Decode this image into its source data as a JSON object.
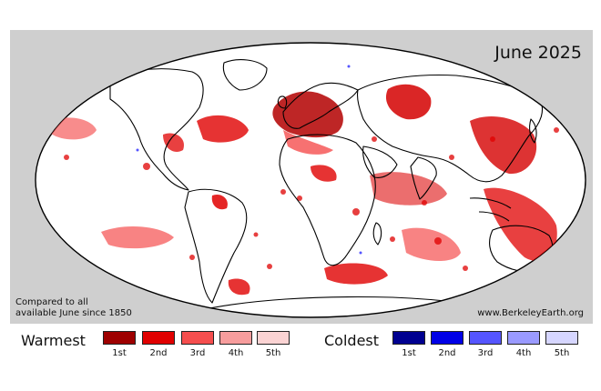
{
  "map": {
    "title": "June 2025",
    "note_line1": "Compared to all",
    "note_line2": "available June since 1850",
    "credit": "www.BerkeleyEarth.org",
    "colors": {
      "panel_bg": "#cfcfcf",
      "ocean_land": "#ffffff",
      "coast": "#000000"
    }
  },
  "legend": {
    "warm": {
      "label": "Warmest",
      "ranks": [
        {
          "label": "1st",
          "color": "#9e0000"
        },
        {
          "label": "2nd",
          "color": "#e00000"
        },
        {
          "label": "3rd",
          "color": "#f54e4e"
        },
        {
          "label": "4th",
          "color": "#f79d9d"
        },
        {
          "label": "5th",
          "color": "#fbd3d3"
        }
      ]
    },
    "cold": {
      "label": "Coldest",
      "ranks": [
        {
          "label": "1st",
          "color": "#000090"
        },
        {
          "label": "2nd",
          "color": "#0000e6"
        },
        {
          "label": "3rd",
          "color": "#5555ff"
        },
        {
          "label": "4th",
          "color": "#9a9aff"
        },
        {
          "label": "5th",
          "color": "#d6d6ff"
        }
      ]
    }
  }
}
